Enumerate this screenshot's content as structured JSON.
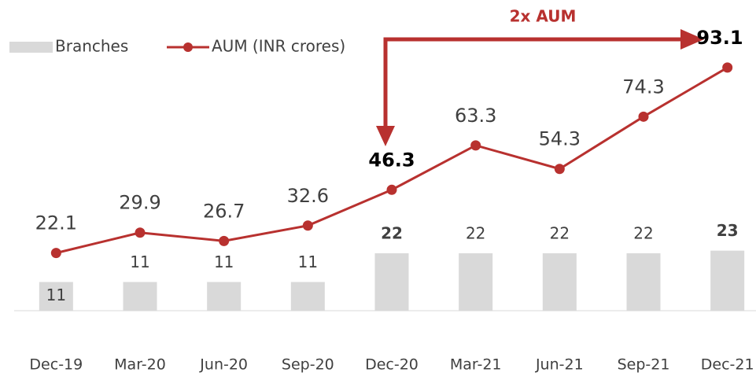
{
  "chart_data": {
    "type": "combo",
    "annotation": "2x AUM",
    "categories": [
      "Dec-19",
      "Mar-20",
      "Jun-20",
      "Sep-20",
      "Dec-20",
      "Mar-21",
      "Jun-21",
      "Sep-21",
      "Dec-21"
    ],
    "series": [
      {
        "name": "Branches",
        "type": "bar",
        "color": "#d9d9d9",
        "values": [
          11,
          11,
          11,
          11,
          22,
          22,
          22,
          22,
          23
        ]
      },
      {
        "name": "AUM (INR crores)",
        "type": "line",
        "color": "#b8312f",
        "values": [
          22.1,
          29.9,
          26.7,
          32.6,
          46.3,
          63.3,
          54.3,
          74.3,
          93.1
        ]
      }
    ],
    "bold_indices": [
      4,
      8
    ],
    "ylim": [
      0,
      100
    ],
    "legend": "top-left"
  }
}
